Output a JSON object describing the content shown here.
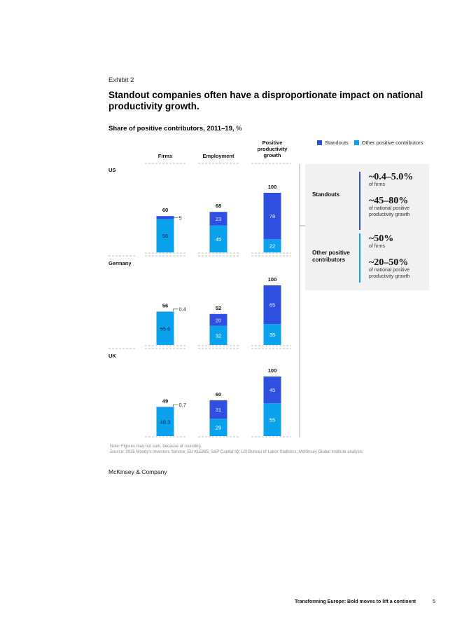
{
  "exhibit": "Exhibit 2",
  "title": "Standout companies often have a disproportionate impact on national productivity growth.",
  "subtitle": "Share of positive contributors, 2011–19,",
  "subtitle_unit": "%",
  "colors": {
    "standouts": "#2E4FE0",
    "others": "#0AA2EC",
    "panel": "#f1f1f1"
  },
  "legend": {
    "standouts": "Standouts",
    "others": "Other positive contributors"
  },
  "chart_data": {
    "type": "bar",
    "stacked": true,
    "columns": [
      "Firms",
      "Employment",
      "Positive productivity growth"
    ],
    "countries": [
      {
        "name": "US",
        "bars": [
          {
            "total": 60,
            "standouts": 5,
            "others": 56
          },
          {
            "total": 68,
            "standouts": 23,
            "others": 45
          },
          {
            "total": 100,
            "standouts": 78,
            "others": 22
          }
        ]
      },
      {
        "name": "Germany",
        "bars": [
          {
            "total": 56,
            "standouts": 0.4,
            "others": 55.6
          },
          {
            "total": 52,
            "standouts": 20,
            "others": 32
          },
          {
            "total": 100,
            "standouts": 65,
            "others": 35
          }
        ]
      },
      {
        "name": "UK",
        "bars": [
          {
            "total": 49,
            "standouts": 0.7,
            "others": 48.3
          },
          {
            "total": 60,
            "standouts": 31,
            "others": 29
          },
          {
            "total": 100,
            "standouts": 45,
            "others": 55
          }
        ]
      }
    ],
    "series": [
      {
        "name": "Standouts",
        "key": "standouts"
      },
      {
        "name": "Other positive contributors",
        "key": "others"
      }
    ],
    "ylim": [
      0,
      100
    ]
  },
  "summary": {
    "standouts": {
      "label": "Standouts",
      "firms_value": "~0.4–5.0%",
      "firms_desc": "of firms",
      "growth_value": "~45–80%",
      "growth_desc": "of national positive productivity growth"
    },
    "others": {
      "label": "Other positive contributors",
      "firms_value": "~50%",
      "firms_desc": "of firms",
      "growth_value": "~20–50%",
      "growth_desc": "of national positive productivity growth"
    }
  },
  "note": "Note: Figures may not sum, because of rounding.",
  "source": "Source: 2025 Moody's Investors Service; EU KLEMS; S&P Capital IQ; US Bureau of Labor Statistics; McKinsey Global Institute analysis",
  "brand": "McKinsey & Company",
  "footer": {
    "title": "Transforming Europe: Bold moves to lift a continent",
    "page": "5"
  }
}
